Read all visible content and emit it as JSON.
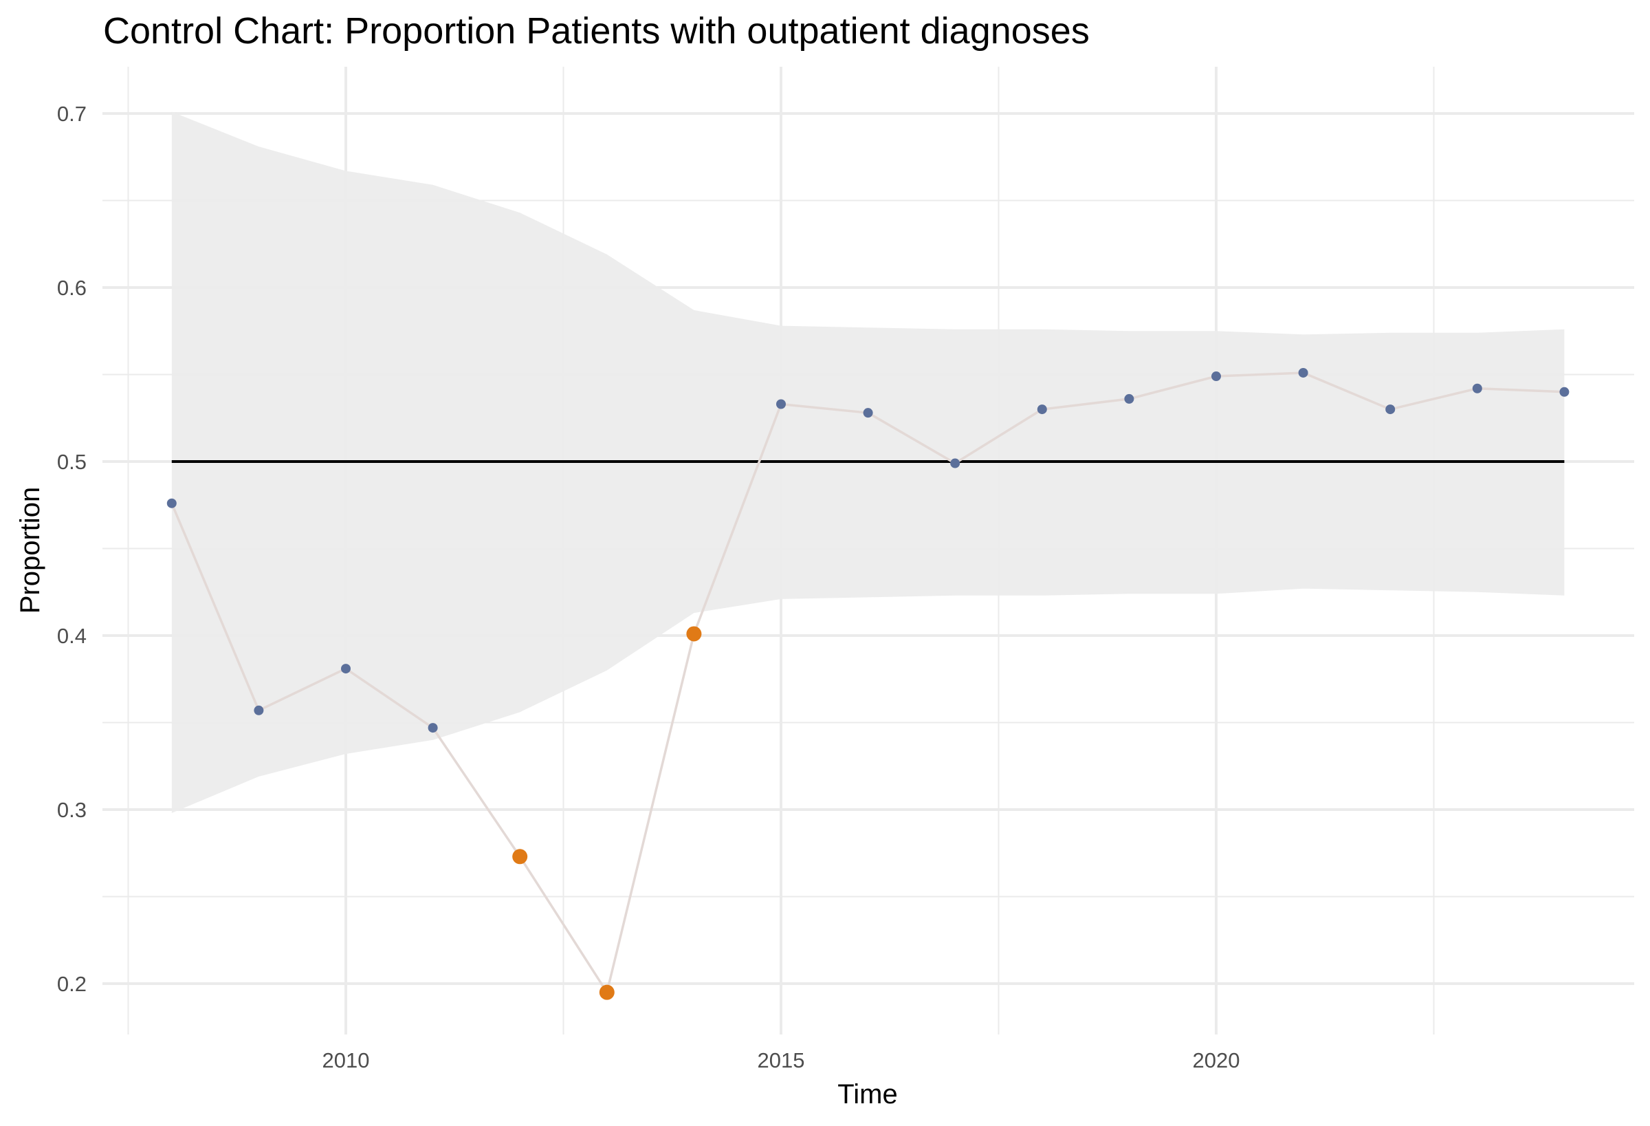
{
  "chart_data": {
    "type": "line",
    "title": "Control Chart: Proportion Patients with outpatient diagnoses",
    "xlabel": "Time",
    "ylabel": "Proportion",
    "xlim": [
      2007.5,
      2024.5
    ],
    "ylim": [
      0.172,
      0.727
    ],
    "x_ticks": [
      2010,
      2015,
      2020
    ],
    "x_tick_labels": [
      "2010",
      "2015",
      "2020"
    ],
    "x_minor_ticks": [
      2007.5,
      2012.5,
      2017.5,
      2022.5
    ],
    "y_ticks": [
      0.2,
      0.3,
      0.4,
      0.5,
      0.6,
      0.7
    ],
    "y_tick_labels": [
      "0.2",
      "0.3",
      "0.4",
      "0.5",
      "0.6",
      "0.7"
    ],
    "y_minor_ticks": [
      0.25,
      0.35,
      0.45,
      0.55,
      0.65
    ],
    "grid": true,
    "legend": "none",
    "center_line": 0.5,
    "x": [
      2008,
      2009,
      2010,
      2011,
      2012,
      2013,
      2014,
      2015,
      2016,
      2017,
      2018,
      2019,
      2020,
      2021,
      2022,
      2023,
      2024
    ],
    "series": [
      {
        "name": "Proportion",
        "values": [
          0.476,
          0.357,
          0.381,
          0.347,
          0.273,
          0.195,
          0.401,
          0.533,
          0.528,
          0.499,
          0.53,
          0.536,
          0.549,
          0.551,
          0.53,
          0.542,
          0.54
        ],
        "out_of_control": [
          false,
          false,
          false,
          false,
          true,
          true,
          true,
          false,
          false,
          false,
          false,
          false,
          false,
          false,
          false,
          false,
          false
        ]
      }
    ],
    "upper_limit": [
      0.701,
      0.681,
      0.667,
      0.659,
      0.643,
      0.619,
      0.587,
      0.578,
      0.577,
      0.576,
      0.576,
      0.575,
      0.575,
      0.573,
      0.574,
      0.574,
      0.576
    ],
    "lower_limit": [
      0.298,
      0.319,
      0.332,
      0.34,
      0.356,
      0.38,
      0.413,
      0.421,
      0.422,
      0.423,
      0.423,
      0.424,
      0.424,
      0.427,
      0.426,
      0.425,
      0.423
    ],
    "colors": {
      "in_control": "#5b6f9a",
      "out_of_control": "#e07a16",
      "line": "#e3d9d6",
      "band": "#ebebeb",
      "center_line": "#000000"
    }
  }
}
